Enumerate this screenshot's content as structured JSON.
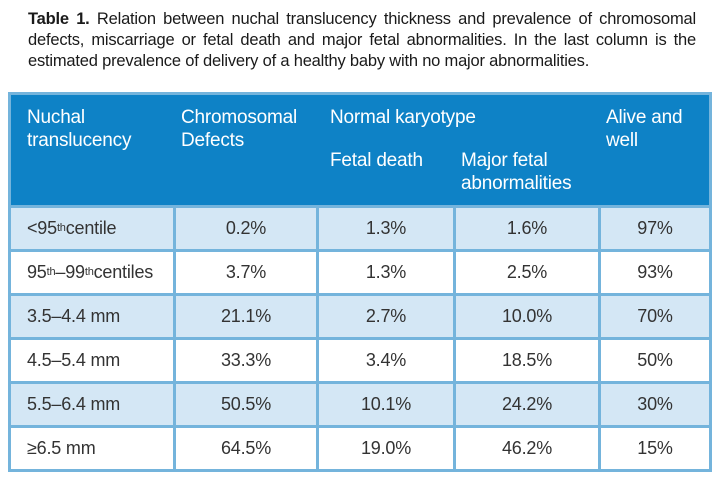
{
  "caption": {
    "label": "Table 1.",
    "text": " Relation between nuchal translucency thickness and prevalence of chromosomal defects, miscarriage or fetal death and major fetal abnormalities. In the last column is the estimated prevalence of delivery of a healthy baby with no major abnormalities."
  },
  "table": {
    "headers": {
      "nuchal": "Nuchal translucency",
      "chromosomal": "Chromosomal Defects",
      "normal_karyotype": "Normal karyotype",
      "fetal_death": "Fetal death",
      "major_fetal": "Major fetal abnormalities",
      "alive": "Alive and well"
    },
    "rows": [
      {
        "label_parts": [
          {
            "t": "<95"
          },
          {
            "t": "th",
            "sup": true
          },
          {
            "t": " centile"
          }
        ],
        "values": [
          "0.2%",
          "1.3%",
          "1.6%",
          "97%"
        ]
      },
      {
        "label_parts": [
          {
            "t": "95"
          },
          {
            "t": "th",
            "sup": true
          },
          {
            "t": "–99"
          },
          {
            "t": "th",
            "sup": true
          },
          {
            "t": " centiles"
          }
        ],
        "values": [
          "3.7%",
          "1.3%",
          "2.5%",
          "93%"
        ]
      },
      {
        "label_parts": [
          {
            "t": "3.5–4.4 mm"
          }
        ],
        "values": [
          "21.1%",
          "2.7%",
          "10.0%",
          "70%"
        ]
      },
      {
        "label_parts": [
          {
            "t": "4.5–5.4 mm"
          }
        ],
        "values": [
          "33.3%",
          "3.4%",
          "18.5%",
          "50%"
        ]
      },
      {
        "label_parts": [
          {
            "t": "5.5–6.4 mm"
          }
        ],
        "values": [
          "50.5%",
          "10.1%",
          "24.2%",
          "30%"
        ]
      },
      {
        "label_parts": [
          {
            "t": "≥6.5 mm"
          }
        ],
        "values": [
          "64.5%",
          "19.0%",
          "46.2%",
          "15%"
        ]
      }
    ]
  },
  "colors": {
    "header_bg": "#0e82c6",
    "alt_row_bg": "#d4e7f5",
    "border": "#74b4dc",
    "header_text": "#ffffff",
    "body_text": "#333333"
  }
}
